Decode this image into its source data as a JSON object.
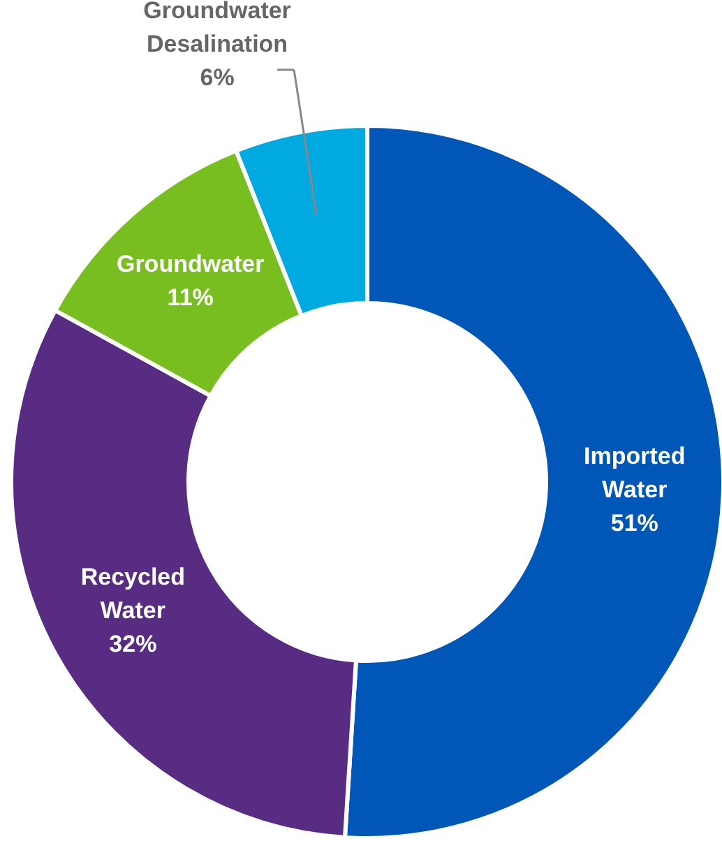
{
  "chart_data": {
    "type": "donut",
    "categories": [
      "Imported Water",
      "Recycled Water",
      "Groundwater",
      "Groundwater Desalination"
    ],
    "values": [
      51,
      32,
      11,
      6
    ],
    "value_labels": [
      "51%",
      "32%",
      "11%",
      "6%"
    ],
    "colors": [
      "#0057b8",
      "#582c83",
      "#78be21",
      "#00a9e0"
    ]
  }
}
